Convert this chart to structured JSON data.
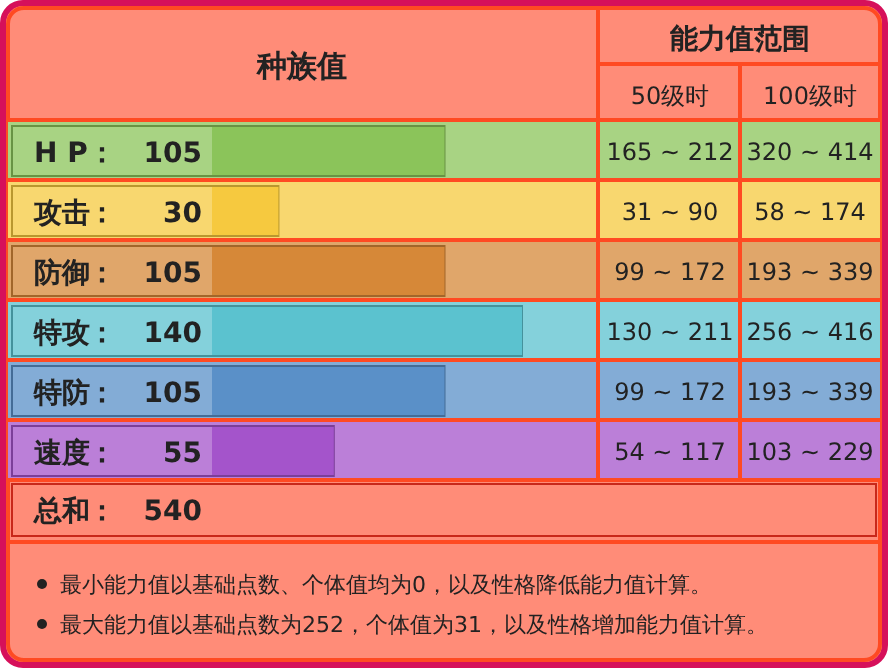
{
  "chart_data": {
    "type": "bar",
    "orientation": "horizontal",
    "title": "种族值",
    "categories": [
      "H P",
      "攻击",
      "防御",
      "特攻",
      "特防",
      "速度"
    ],
    "values": [
      105,
      30,
      105,
      140,
      105,
      55
    ],
    "colors": [
      "#8bc45a",
      "#f6c93f",
      "#d68838",
      "#5bc2cf",
      "#5a90c8",
      "#a454cb"
    ],
    "data_labels": true,
    "annotations": [
      "能力值范围",
      "50级时",
      "100级时",
      "165 ~ 212",
      "320 ~ 414",
      "31 ~ 90",
      "58 ~ 174",
      "99 ~ 172",
      "193 ~ 339",
      "130 ~ 211",
      "256 ~ 416",
      "99 ~ 172",
      "193 ~ 339",
      "54 ~ 117",
      "103 ~ 229",
      "总和",
      "：",
      "540",
      "最小能力值以基础点数、个体值均为0，以及性格降低能力值计算。",
      "最大能力值以基础点数为252，个体值为31，以及性格增加能力值计算。"
    ]
  }
}
